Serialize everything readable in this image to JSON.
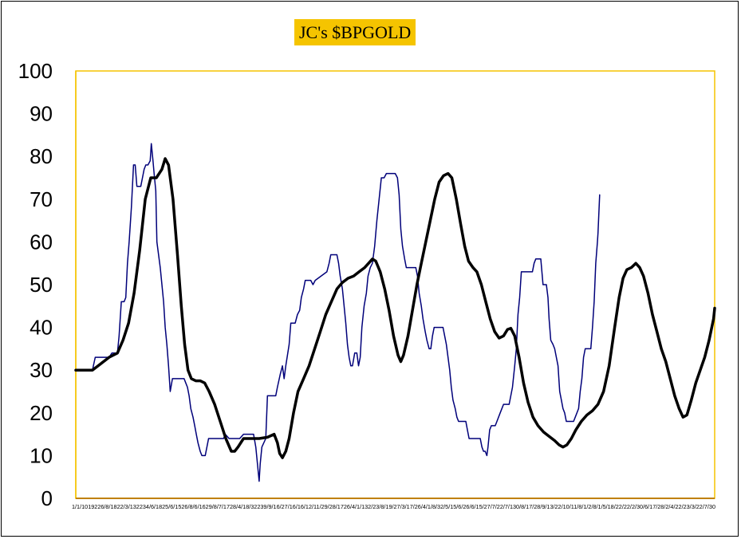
{
  "chart_data": {
    "type": "line",
    "title": "JC's $BPGOLD",
    "xlabel": "",
    "ylabel": "",
    "ylim": [
      0,
      100
    ],
    "yticks": [
      0,
      10,
      20,
      30,
      40,
      50,
      60,
      70,
      80,
      90,
      100
    ],
    "xtick_text": "1/1/1019226/8/1822/3/132234/6/1825/6/1526/8/6/1629/8/7/1728/4/18/32239/9/16/27/16/16/12/11/29/28/1726/4/1/132/23/8/19/27/3/17/26/4/1/8/32/5/15/6/26/6/15/27/7/22/7/130/8/17/28/9/13/22/10/11/8/1/2/8/1/5/18/22/22/2/30/6/17/28/2/4/22/23/3/22/7/30",
    "grid": false,
    "colors": {
      "plot_border": "#f5c400",
      "title_bg": "#f5c400",
      "raw_series": "#00007a",
      "smooth_series": "#000000"
    },
    "series": [
      {
        "values": [
          [
            0,
            30
          ],
          [
            3,
            30
          ],
          [
            3.5,
            33
          ],
          [
            6,
            33
          ],
          [
            6.5,
            34
          ],
          [
            7.5,
            34
          ],
          [
            7.8,
            38
          ],
          [
            8.2,
            46
          ],
          [
            8.7,
            46
          ],
          [
            9,
            47
          ],
          [
            9.3,
            55
          ],
          [
            9.6,
            60
          ],
          [
            10,
            68
          ],
          [
            10.4,
            78
          ],
          [
            10.7,
            78
          ],
          [
            11,
            73
          ],
          [
            11.7,
            73
          ],
          [
            12,
            75
          ],
          [
            12.3,
            77
          ],
          [
            12.6,
            78
          ],
          [
            13,
            78
          ],
          [
            13.4,
            79
          ],
          [
            13.6,
            83
          ],
          [
            13.9,
            79
          ],
          [
            14.1,
            76
          ],
          [
            14.4,
            72
          ],
          [
            14.6,
            60
          ],
          [
            14.9,
            57
          ],
          [
            15.2,
            54
          ],
          [
            15.5,
            50
          ],
          [
            15.8,
            46
          ],
          [
            16.1,
            40
          ],
          [
            16.4,
            36
          ],
          [
            16.7,
            31
          ],
          [
            17,
            25
          ],
          [
            17.4,
            28
          ],
          [
            19.5,
            28
          ],
          [
            19.8,
            27
          ],
          [
            20.1,
            26
          ],
          [
            20.4,
            24
          ],
          [
            20.7,
            21
          ],
          [
            21.1,
            19
          ],
          [
            21.4,
            17
          ],
          [
            21.7,
            15
          ],
          [
            22,
            13
          ],
          [
            22.4,
            11
          ],
          [
            22.7,
            10
          ],
          [
            23.3,
            10
          ],
          [
            23.6,
            12
          ],
          [
            23.9,
            14
          ],
          [
            26.6,
            14
          ],
          [
            26.9,
            15
          ],
          [
            27.6,
            14
          ],
          [
            29.5,
            14
          ],
          [
            30.2,
            15
          ],
          [
            32,
            15
          ],
          [
            32.4,
            12
          ],
          [
            32.7,
            8
          ],
          [
            33,
            4
          ],
          [
            33.2,
            8
          ],
          [
            33.5,
            12
          ],
          [
            34.2,
            14
          ],
          [
            34.5,
            24
          ],
          [
            36,
            24
          ],
          [
            36.3,
            26
          ],
          [
            36.8,
            29
          ],
          [
            37.2,
            31
          ],
          [
            37.5,
            28
          ],
          [
            37.8,
            31
          ],
          [
            38.4,
            36
          ],
          [
            38.7,
            41
          ],
          [
            39.5,
            41
          ],
          [
            39.9,
            43
          ],
          [
            40.3,
            44
          ],
          [
            40.6,
            47
          ],
          [
            41,
            49
          ],
          [
            41.3,
            51
          ],
          [
            42.3,
            51
          ],
          [
            42.7,
            50
          ],
          [
            43.1,
            51
          ],
          [
            45.2,
            53
          ],
          [
            45.6,
            55
          ],
          [
            45.9,
            57
          ],
          [
            47,
            57
          ],
          [
            47.3,
            55
          ],
          [
            47.6,
            52
          ],
          [
            48,
            49
          ],
          [
            48.3,
            45
          ],
          [
            48.6,
            41
          ],
          [
            48.9,
            36
          ],
          [
            49.2,
            33
          ],
          [
            49.5,
            31
          ],
          [
            49.8,
            31
          ],
          [
            50.2,
            34
          ],
          [
            50.6,
            34
          ],
          [
            50.9,
            31
          ],
          [
            51.2,
            33
          ],
          [
            51.5,
            40
          ],
          [
            51.9,
            45
          ],
          [
            52.3,
            48
          ],
          [
            52.6,
            52
          ],
          [
            53,
            54
          ],
          [
            53.4,
            55
          ],
          [
            53.8,
            59
          ],
          [
            54.2,
            65
          ],
          [
            54.6,
            70
          ],
          [
            55,
            75
          ],
          [
            55.5,
            75
          ],
          [
            55.9,
            76
          ],
          [
            57.5,
            76
          ],
          [
            57.9,
            75
          ],
          [
            58.2,
            71
          ],
          [
            58.5,
            63
          ],
          [
            58.8,
            59
          ],
          [
            59.2,
            56
          ],
          [
            59.5,
            54
          ],
          [
            61.2,
            54
          ],
          [
            61.5,
            52
          ],
          [
            61.8,
            48
          ],
          [
            62.2,
            45
          ],
          [
            62.5,
            42
          ],
          [
            62.9,
            39
          ],
          [
            63.2,
            37
          ],
          [
            63.6,
            35
          ],
          [
            63.9,
            35
          ],
          [
            64.2,
            38
          ],
          [
            64.5,
            40
          ],
          [
            66.1,
            40
          ],
          [
            66.4,
            38
          ],
          [
            66.7,
            36
          ],
          [
            67,
            33
          ],
          [
            67.3,
            30
          ],
          [
            67.6,
            26
          ],
          [
            67.9,
            23
          ],
          [
            68.3,
            21
          ],
          [
            68.6,
            19
          ],
          [
            68.9,
            18
          ],
          [
            70.2,
            18
          ],
          [
            70.5,
            16
          ],
          [
            70.8,
            14
          ],
          [
            72.8,
            14
          ],
          [
            73.1,
            12
          ],
          [
            73.4,
            11
          ],
          [
            73.7,
            11
          ],
          [
            74,
            10
          ],
          [
            74.2,
            12
          ],
          [
            74.5,
            16
          ],
          [
            74.8,
            17
          ],
          [
            75.5,
            17
          ],
          [
            75.8,
            18
          ],
          [
            76.4,
            20
          ],
          [
            77,
            22
          ],
          [
            78,
            22
          ],
          [
            78.3,
            24
          ],
          [
            78.6,
            26
          ],
          [
            79,
            31
          ],
          [
            79.3,
            35
          ],
          [
            79.6,
            43
          ],
          [
            79.9,
            47
          ],
          [
            80.2,
            53
          ],
          [
            82.2,
            53
          ],
          [
            82.5,
            55
          ],
          [
            82.8,
            56
          ],
          [
            83.7,
            56
          ],
          [
            84.1,
            50
          ],
          [
            84.7,
            50
          ],
          [
            85,
            47
          ],
          [
            85.2,
            42
          ],
          [
            85.5,
            37
          ],
          [
            85.9,
            36
          ],
          [
            86.2,
            35
          ],
          [
            86.5,
            33
          ],
          [
            86.8,
            31
          ],
          [
            87.1,
            25
          ],
          [
            87.4,
            23
          ],
          [
            87.7,
            21
          ],
          [
            88,
            20
          ],
          [
            88.3,
            18
          ],
          [
            89.6,
            18
          ],
          [
            89.9,
            19
          ],
          [
            90.2,
            20
          ],
          [
            90.5,
            21
          ],
          [
            90.8,
            25
          ],
          [
            91.1,
            28
          ],
          [
            91.4,
            33
          ],
          [
            91.7,
            35
          ],
          [
            92.7,
            35
          ],
          [
            93,
            40
          ],
          [
            93.3,
            46
          ],
          [
            93.6,
            55
          ],
          [
            93.9,
            60
          ],
          [
            94,
            62
          ],
          [
            94.3,
            71
          ]
        ]
      },
      {
        "values": [
          [
            0,
            30
          ],
          [
            3,
            30
          ],
          [
            4.5,
            31.5
          ],
          [
            6,
            33
          ],
          [
            7.5,
            34
          ],
          [
            8.5,
            37
          ],
          [
            9.5,
            41
          ],
          [
            10.5,
            48
          ],
          [
            11.5,
            58
          ],
          [
            12.5,
            70
          ],
          [
            13.5,
            75
          ],
          [
            14.5,
            75
          ],
          [
            15.5,
            77
          ],
          [
            16.1,
            79.5
          ],
          [
            16.7,
            78
          ],
          [
            17.5,
            70
          ],
          [
            18.3,
            57
          ],
          [
            19,
            45
          ],
          [
            19.6,
            36
          ],
          [
            20.2,
            30
          ],
          [
            20.8,
            28
          ],
          [
            21.6,
            27.5
          ],
          [
            22.4,
            27.5
          ],
          [
            23.2,
            27
          ],
          [
            24,
            25
          ],
          [
            25,
            22
          ],
          [
            26,
            18
          ],
          [
            27,
            14
          ],
          [
            28,
            11
          ],
          [
            28.6,
            11
          ],
          [
            29.2,
            12
          ],
          [
            30.2,
            14
          ],
          [
            31.5,
            14
          ],
          [
            33,
            14
          ],
          [
            34.5,
            14.3
          ],
          [
            35.7,
            15
          ],
          [
            36.3,
            13
          ],
          [
            36.7,
            10.5
          ],
          [
            37.2,
            9.5
          ],
          [
            37.8,
            11
          ],
          [
            38.4,
            14
          ],
          [
            39.2,
            20
          ],
          [
            40,
            25
          ],
          [
            41,
            28
          ],
          [
            42,
            31
          ],
          [
            43,
            35
          ],
          [
            44,
            39
          ],
          [
            45,
            43
          ],
          [
            46,
            46
          ],
          [
            47,
            49
          ],
          [
            48,
            50.5
          ],
          [
            49,
            51.5
          ],
          [
            50,
            52
          ],
          [
            51,
            53
          ],
          [
            52,
            54
          ],
          [
            52.7,
            55
          ],
          [
            53.4,
            56
          ],
          [
            54,
            55.5
          ],
          [
            54.8,
            53
          ],
          [
            55.6,
            49
          ],
          [
            56.4,
            44
          ],
          [
            57.2,
            38
          ],
          [
            58,
            33.5
          ],
          [
            58.5,
            32
          ],
          [
            59,
            33.5
          ],
          [
            59.8,
            38
          ],
          [
            60.6,
            44
          ],
          [
            61.4,
            50
          ],
          [
            62.2,
            55
          ],
          [
            63,
            60
          ],
          [
            63.8,
            65
          ],
          [
            64.6,
            70
          ],
          [
            65.4,
            74
          ],
          [
            66.2,
            75.5
          ],
          [
            67,
            76
          ],
          [
            67.7,
            75
          ],
          [
            68.5,
            70
          ],
          [
            69.3,
            64
          ],
          [
            70,
            59
          ],
          [
            70.7,
            55.5
          ],
          [
            71.5,
            54
          ],
          [
            72.2,
            53
          ],
          [
            73,
            50
          ],
          [
            73.8,
            46
          ],
          [
            74.6,
            42
          ],
          [
            75.4,
            39
          ],
          [
            76.2,
            37.5
          ],
          [
            77,
            38
          ],
          [
            77.7,
            39.5
          ],
          [
            78.3,
            39.8
          ],
          [
            79,
            38
          ],
          [
            79.8,
            33
          ],
          [
            80.6,
            27
          ],
          [
            81.4,
            22.5
          ],
          [
            82.3,
            19
          ],
          [
            83.2,
            17
          ],
          [
            84.2,
            15.5
          ],
          [
            85.2,
            14.5
          ],
          [
            86.2,
            13.5
          ],
          [
            87,
            12.5
          ],
          [
            87.7,
            12
          ],
          [
            88.4,
            12.5
          ],
          [
            89.2,
            14
          ],
          [
            90,
            16
          ],
          [
            91,
            18
          ],
          [
            92,
            19.5
          ],
          [
            93,
            20.5
          ],
          [
            94,
            22
          ],
          [
            95,
            25
          ],
          [
            96,
            31
          ],
          [
            97,
            40
          ],
          [
            97.8,
            47
          ],
          [
            98.5,
            51.5
          ],
          [
            99.2,
            53.5
          ],
          [
            100,
            54
          ],
          [
            100.8,
            55
          ],
          [
            101.5,
            54
          ],
          [
            102.2,
            52
          ],
          [
            103,
            48
          ],
          [
            103.8,
            43
          ],
          [
            104.6,
            39
          ],
          [
            105.4,
            35
          ],
          [
            106.2,
            32
          ],
          [
            107,
            28
          ],
          [
            107.8,
            24
          ],
          [
            108.6,
            21
          ],
          [
            109.3,
            19
          ],
          [
            110,
            19.5
          ],
          [
            110.8,
            23
          ],
          [
            111.6,
            27
          ],
          [
            112.4,
            30
          ],
          [
            113.2,
            33
          ],
          [
            114,
            37
          ],
          [
            114.8,
            42
          ],
          [
            115,
            44.5
          ]
        ]
      }
    ]
  }
}
